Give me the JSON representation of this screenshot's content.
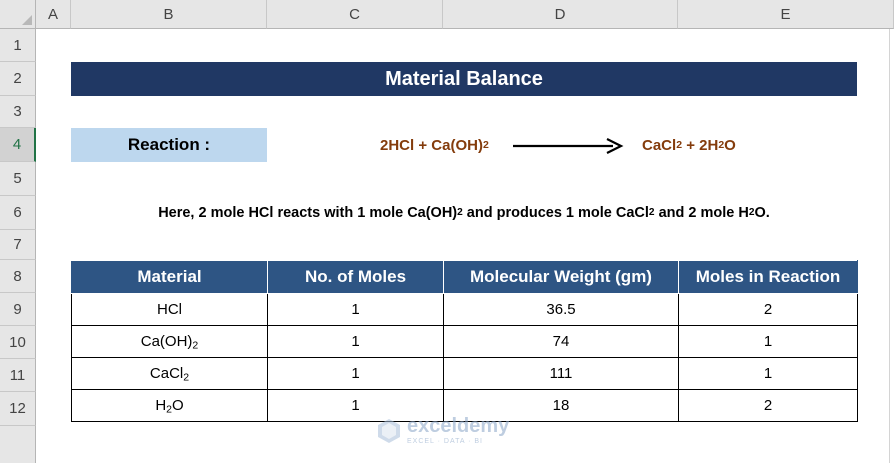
{
  "columns": [
    "A",
    "B",
    "C",
    "D",
    "E"
  ],
  "rows": [
    "1",
    "2",
    "3",
    "4",
    "5",
    "6",
    "7",
    "8",
    "9",
    "10",
    "11",
    "12"
  ],
  "selected_row": "4",
  "title": "Material Balance",
  "reaction": {
    "label": "Reaction :",
    "reactant1": "2HCl",
    "plus1": "+",
    "reactant2_main": "Ca(OH)",
    "reactant2_sub": "2",
    "product1_main": "CaCl",
    "product1_sub": "2",
    "plus2": "+",
    "product2_pre": "2H",
    "product2_sub": "2",
    "product2_post": "O"
  },
  "note": {
    "part1": "Here, 2 mole HCl reacts with 1 mole Ca(OH)",
    "sub1": "2",
    "part2": " and produces 1 mole CaCl",
    "sub2": "2",
    "part3": " and 2 mole H",
    "sub3": "2",
    "part4": "O."
  },
  "table": {
    "headers": [
      "Material",
      "No. of Moles",
      "Molecular Weight (gm)",
      "Moles in Reaction"
    ],
    "rows": [
      {
        "material_main": "HCl",
        "material_sub": "",
        "material_post": "",
        "moles": "1",
        "mw": "36.5",
        "reaction": "2"
      },
      {
        "material_main": "Ca(OH)",
        "material_sub": "2",
        "material_post": "",
        "moles": "1",
        "mw": "74",
        "reaction": "1"
      },
      {
        "material_main": "CaCl",
        "material_sub": "2",
        "material_post": "",
        "moles": "1",
        "mw": "111",
        "reaction": "1"
      },
      {
        "material_main": "H",
        "material_sub": "2",
        "material_post": "O",
        "moles": "1",
        "mw": "18",
        "reaction": "2"
      }
    ]
  },
  "watermark": {
    "name": "exceldemy",
    "tagline": "EXCEL · DATA · BI"
  },
  "colors": {
    "title_bg": "#203864",
    "header_bg": "#2e5584",
    "reaction_label_bg": "#bdd7ee",
    "equation_text": "#843c0c",
    "selection": "#217346"
  }
}
